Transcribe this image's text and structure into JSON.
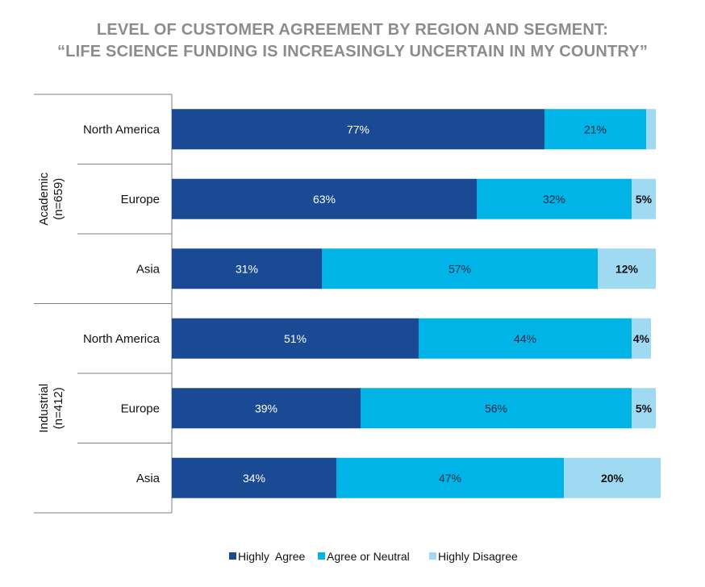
{
  "title_line1": "LEVEL OF CUSTOMER AGREEMENT BY REGION AND SEGMENT:",
  "title_line2": "“LIFE SCIENCE FUNDING IS INCREASINGLY UNCERTAIN IN MY COUNTRY”",
  "chart_data": {
    "type": "bar",
    "orientation": "horizontal",
    "stacked": true,
    "groups": [
      {
        "name": "Academic\n(n=659)",
        "line1": "Academic",
        "line2": "(n=659)",
        "categories": [
          "North America",
          "Europe",
          "Asia"
        ]
      },
      {
        "name": "Industrial\n(n=412)",
        "line1": "Industrial",
        "line2": "(n=412)",
        "categories": [
          "North America",
          "Europe",
          "Asia"
        ]
      }
    ],
    "categories": [
      "North America",
      "Europe",
      "Asia",
      "North America",
      "Europe",
      "Asia"
    ],
    "series": [
      {
        "name": "Highly  Agree",
        "color": "#1a4a94",
        "values": [
          77,
          63,
          31,
          51,
          39,
          34
        ],
        "labels": [
          "77%",
          "63%",
          "31%",
          "51%",
          "39%",
          "34%"
        ]
      },
      {
        "name": "Agree or Neutral",
        "color": "#00b4e8",
        "values": [
          21,
          32,
          57,
          44,
          56,
          47
        ],
        "labels": [
          "21%",
          "32%",
          "57%",
          "44%",
          "56%",
          "47%"
        ]
      },
      {
        "name": "Highly Disagree",
        "color": "#9fd9f2",
        "values": [
          2,
          5,
          12,
          4,
          5,
          20
        ],
        "labels": [
          "",
          "5%",
          "12%",
          "4%",
          "5%",
          "20%"
        ]
      }
    ],
    "xlim": [
      0,
      100
    ],
    "legend": "bottom"
  }
}
